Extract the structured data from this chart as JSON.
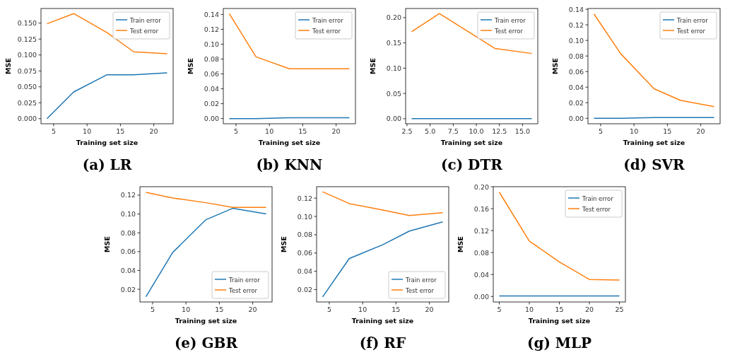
{
  "chart_data": [
    {
      "type": "line",
      "title": "(a) LR",
      "xlabel": "Training set size",
      "ylabel": "MSE",
      "x": [
        4,
        8,
        13,
        17,
        22
      ],
      "xlim": [
        3.1,
        22.9
      ],
      "xticks": [
        5,
        10,
        15,
        20
      ],
      "ylim": [
        -0.008,
        0.173
      ],
      "yticks": [
        {
          "value": 0,
          "label": "0.000"
        },
        {
          "value": 0.025,
          "label": "0.025"
        },
        {
          "value": 0.05,
          "label": "0.050"
        },
        {
          "value": 0.075,
          "label": "0.075"
        },
        {
          "value": 0.1,
          "label": "0.100"
        },
        {
          "value": 0.125,
          "label": "0.125"
        },
        {
          "value": 0.15,
          "label": "0.150"
        }
      ],
      "legend": "top right",
      "series": [
        {
          "name": "Train error",
          "color": "#1f77b4",
          "values": [
            0.0,
            0.042,
            0.069,
            0.069,
            0.072
          ]
        },
        {
          "name": "Test error",
          "color": "#ff7f0e",
          "values": [
            0.149,
            0.165,
            0.135,
            0.105,
            0.102
          ]
        }
      ]
    },
    {
      "type": "line",
      "title": "(b) KNN",
      "xlabel": "Training set size",
      "ylabel": "MSE",
      "x": [
        4,
        8,
        13,
        17,
        22
      ],
      "xlim": [
        3.1,
        22.9
      ],
      "xticks": [
        5,
        10,
        15,
        20
      ],
      "ylim": [
        -0.007,
        0.148
      ],
      "yticks": [
        {
          "value": 0,
          "label": "0.00"
        },
        {
          "value": 0.02,
          "label": "0.02"
        },
        {
          "value": 0.04,
          "label": "0.04"
        },
        {
          "value": 0.06,
          "label": "0.06"
        },
        {
          "value": 0.08,
          "label": "0.08"
        },
        {
          "value": 0.1,
          "label": "0.10"
        },
        {
          "value": 0.12,
          "label": "0.12"
        },
        {
          "value": 0.14,
          "label": "0.14"
        }
      ],
      "legend": "top right",
      "series": [
        {
          "name": "Train error",
          "color": "#1f77b4",
          "values": [
            0.0,
            0.0,
            0.001,
            0.001,
            0.001
          ]
        },
        {
          "name": "Test error",
          "color": "#ff7f0e",
          "values": [
            0.141,
            0.083,
            0.067,
            0.067,
            0.067
          ]
        }
      ]
    },
    {
      "type": "line",
      "title": "(c) DTR",
      "xlabel": "Training set size",
      "ylabel": "MSE",
      "x": [
        3,
        6,
        12,
        16
      ],
      "xlim": [
        2.35,
        16.65
      ],
      "xticks": [
        2.5,
        {
          "value": 5,
          "label": "5.0"
        },
        7.5,
        {
          "value": 10,
          "label": "10.0"
        },
        12.5,
        {
          "value": 15,
          "label": "15.0"
        }
      ],
      "ylim": [
        -0.01,
        0.218
      ],
      "yticks": [
        {
          "value": 0,
          "label": "0.00"
        },
        {
          "value": 0.05,
          "label": "0.05"
        },
        {
          "value": 0.1,
          "label": "0.10"
        },
        {
          "value": 0.15,
          "label": "0.15"
        },
        {
          "value": 0.2,
          "label": "0.20"
        }
      ],
      "legend": "top right",
      "series": [
        {
          "name": "Train error",
          "color": "#1f77b4",
          "values": [
            0.0,
            0.0,
            0.0,
            0.0
          ]
        },
        {
          "name": "Test error",
          "color": "#ff7f0e",
          "values": [
            0.172,
            0.208,
            0.139,
            0.129
          ]
        }
      ]
    },
    {
      "type": "line",
      "title": "(d) SVR",
      "xlabel": "Training set size",
      "ylabel": "MSE",
      "x": [
        4,
        8,
        13,
        17,
        22
      ],
      "xlim": [
        3.1,
        22.9
      ],
      "xticks": [
        5,
        10,
        15,
        20
      ],
      "ylim": [
        -0.007,
        0.141
      ],
      "yticks": [
        {
          "value": 0,
          "label": "0.00"
        },
        {
          "value": 0.02,
          "label": "0.02"
        },
        {
          "value": 0.04,
          "label": "0.04"
        },
        {
          "value": 0.06,
          "label": "0.06"
        },
        {
          "value": 0.08,
          "label": "0.08"
        },
        {
          "value": 0.1,
          "label": "0.10"
        },
        {
          "value": 0.12,
          "label": "0.12"
        },
        {
          "value": 0.14,
          "label": "0.14"
        }
      ],
      "legend": "top right",
      "series": [
        {
          "name": "Train error",
          "color": "#1f77b4",
          "values": [
            0.0,
            0.0,
            0.001,
            0.001,
            0.001
          ]
        },
        {
          "name": "Test error",
          "color": "#ff7f0e",
          "values": [
            0.134,
            0.083,
            0.038,
            0.023,
            0.015
          ]
        }
      ]
    },
    {
      "type": "line",
      "title": "(e) GBR",
      "xlabel": "Training set size",
      "ylabel": "MSE",
      "x": [
        4,
        8,
        13,
        17,
        22
      ],
      "xlim": [
        3.1,
        22.9
      ],
      "xticks": [
        5,
        10,
        15,
        20
      ],
      "ylim": [
        0.0065,
        0.129
      ],
      "yticks": [
        {
          "value": 0.02,
          "label": "0.02"
        },
        {
          "value": 0.04,
          "label": "0.04"
        },
        {
          "value": 0.06,
          "label": "0.06"
        },
        {
          "value": 0.08,
          "label": "0.08"
        },
        {
          "value": 0.1,
          "label": "0.10"
        },
        {
          "value": 0.12,
          "label": "0.12"
        }
      ],
      "legend": "bottom right",
      "series": [
        {
          "name": "Train error",
          "color": "#1f77b4",
          "values": [
            0.012,
            0.059,
            0.094,
            0.106,
            0.1
          ]
        },
        {
          "name": "Test error",
          "color": "#ff7f0e",
          "values": [
            0.123,
            0.117,
            0.112,
            0.107,
            0.107
          ]
        }
      ]
    },
    {
      "type": "line",
      "title": "(f) RF",
      "xlabel": "Training set size",
      "ylabel": "MSE",
      "x": [
        4,
        8,
        13,
        17,
        22
      ],
      "xlim": [
        3.1,
        22.9
      ],
      "xticks": [
        5,
        10,
        15,
        20
      ],
      "ylim": [
        0.0065,
        0.1325
      ],
      "yticks": [
        {
          "value": 0.02,
          "label": "0.02"
        },
        {
          "value": 0.04,
          "label": "0.04"
        },
        {
          "value": 0.06,
          "label": "0.06"
        },
        {
          "value": 0.08,
          "label": "0.08"
        },
        {
          "value": 0.1,
          "label": "0.10"
        },
        {
          "value": 0.12,
          "label": "0.12"
        }
      ],
      "legend": "bottom right",
      "series": [
        {
          "name": "Train error",
          "color": "#1f77b4",
          "values": [
            0.012,
            0.054,
            0.069,
            0.084,
            0.094
          ]
        },
        {
          "name": "Test error",
          "color": "#ff7f0e",
          "values": [
            0.127,
            0.114,
            0.107,
            0.101,
            0.104
          ]
        }
      ]
    },
    {
      "type": "line",
      "title": "(g) MLP",
      "xlabel": "Training set size",
      "ylabel": "MSE",
      "x": [
        5,
        10,
        15,
        20,
        25
      ],
      "xlim": [
        4,
        26
      ],
      "xticks": [
        5,
        10,
        15,
        20,
        25
      ],
      "ylim": [
        -0.01,
        0.2
      ],
      "yticks": [
        {
          "value": 0,
          "label": "0.00"
        },
        {
          "value": 0.04,
          "label": "0.04"
        },
        {
          "value": 0.08,
          "label": "0.08"
        },
        {
          "value": 0.12,
          "label": "0.12"
        },
        {
          "value": 0.16,
          "label": "0.16"
        },
        {
          "value": 0.2,
          "label": "0.20"
        }
      ],
      "legend": "top right",
      "series": [
        {
          "name": "Train error",
          "color": "#1f77b4",
          "values": [
            0.001,
            0.001,
            0.001,
            0.001,
            0.001
          ]
        },
        {
          "name": "Test error",
          "color": "#ff7f0e",
          "values": [
            0.19,
            0.101,
            0.063,
            0.031,
            0.03
          ]
        }
      ]
    }
  ]
}
